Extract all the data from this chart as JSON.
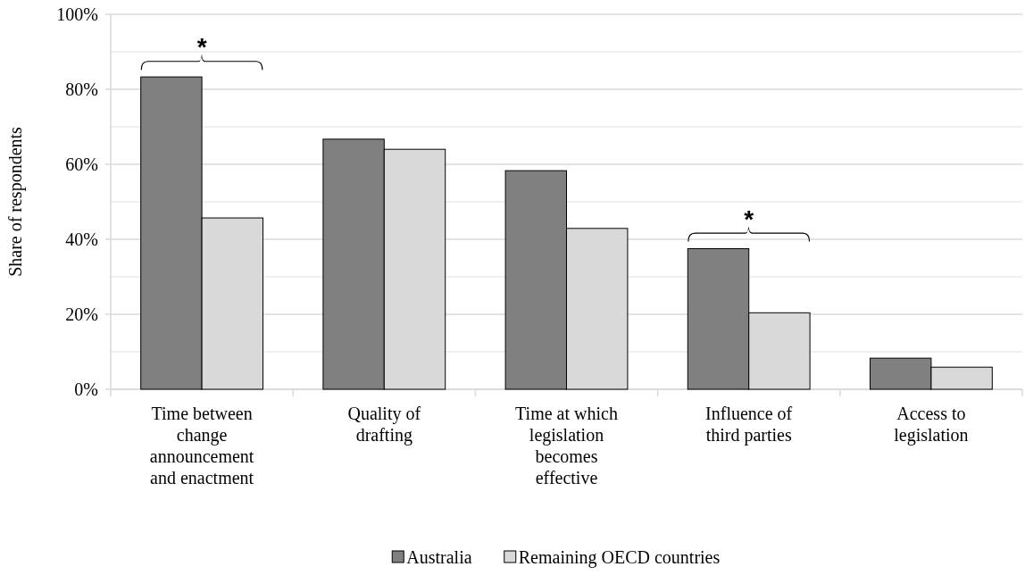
{
  "chart_data": {
    "type": "bar",
    "ylabel": "Share of respondents",
    "categories": [
      "Time between change announcement and enactment",
      "Quality of drafting",
      "Time at which legislation becomes effective",
      "Influence of third parties",
      "Access to legislation"
    ],
    "series": [
      {
        "name": "Australia",
        "color": "#808080",
        "values": [
          83.3,
          66.7,
          58.3,
          37.5,
          8.3
        ]
      },
      {
        "name": "Remaining OECD countries",
        "color": "#d9d9d9",
        "values": [
          45.7,
          64,
          42.9,
          20.4,
          5.9
        ]
      }
    ],
    "ylim": [
      0,
      100
    ],
    "yticks": [
      {
        "value": 0,
        "label": "0%"
      },
      {
        "value": 10,
        "label": null
      },
      {
        "value": 20,
        "label": "20%"
      },
      {
        "value": 30,
        "label": null
      },
      {
        "value": 40,
        "label": "40%"
      },
      {
        "value": 50,
        "label": null
      },
      {
        "value": 60,
        "label": "60%"
      },
      {
        "value": 70,
        "label": null
      },
      {
        "value": 80,
        "label": "80%"
      },
      {
        "value": 90,
        "label": null
      },
      {
        "value": 100,
        "label": "100%"
      }
    ],
    "grid": "y",
    "legend": "bottom",
    "annotations": [
      "*",
      "*"
    ]
  }
}
